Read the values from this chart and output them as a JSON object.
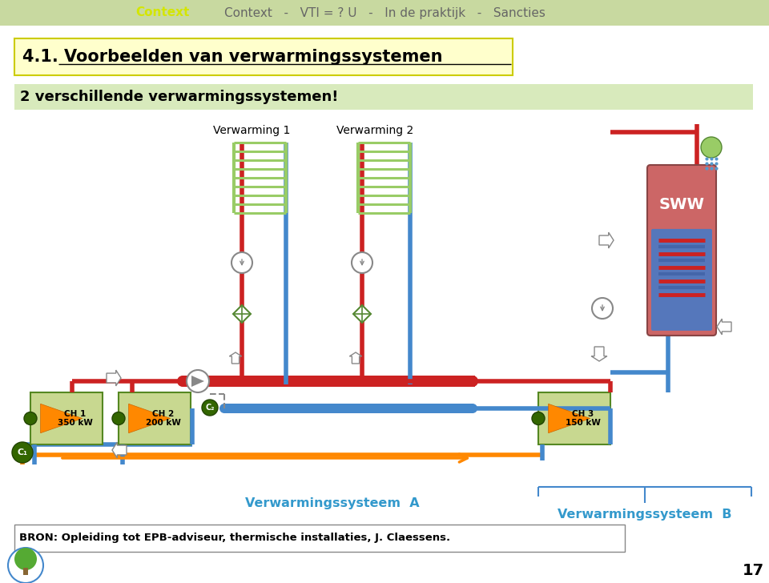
{
  "bg_color": "#ffffff",
  "header_bg": "#c8d9a0",
  "header_text_color": "#666666",
  "header_highlight_color": "#d4e600",
  "title_box_bg": "#ffffcc",
  "title_box_border": "#cccc00",
  "subtitle_box_bg": "#d8eabc",
  "label_verw1": "Verwarming 1",
  "label_verw2": "Verwarming 2",
  "label_sww": "SWW",
  "label_sysA": "Verwarmingssysteem  A",
  "label_sysB": "Verwarmingssysteem  B",
  "label_c1": "C₁",
  "label_c2": "C₂",
  "bron_text": "BRON: Opleiding tot EPB-adviseur, thermische installaties, J. Claessens.",
  "page_number": "17",
  "color_red": "#cc2222",
  "color_blue": "#4488cc",
  "color_orange": "#ff8800",
  "color_gray": "#888888",
  "color_light_green": "#99cc66",
  "color_dark_green": "#336600",
  "color_sysA_label": "#3399cc",
  "color_sysB_label": "#3399cc"
}
